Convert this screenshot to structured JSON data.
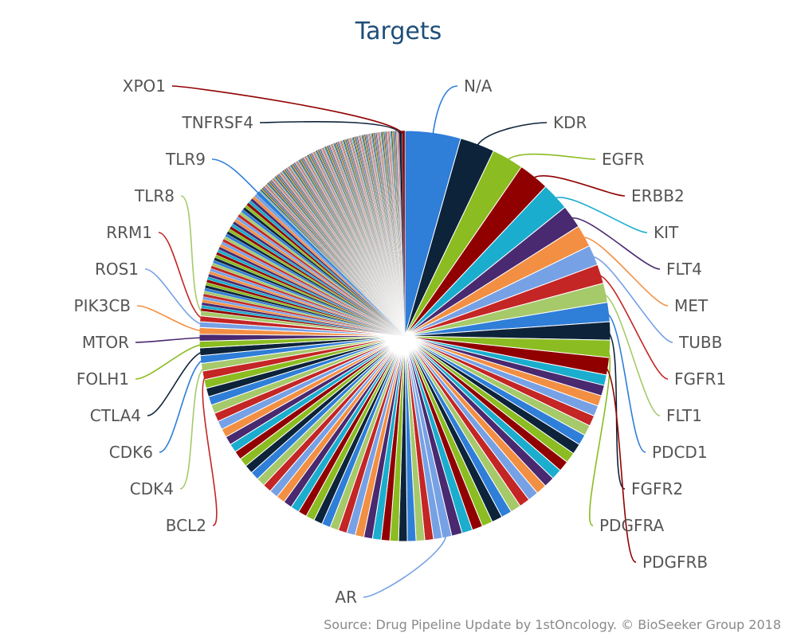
{
  "chart_data": {
    "type": "pie",
    "title": "Targets",
    "credits": "Source: Drug Pipeline Update by 1stOncology. © BioSeeker Group 2018",
    "labeled_slices": [
      {
        "name": "N/A",
        "value": 5.8,
        "color": "#2f7ed8"
      },
      {
        "name": "KDR",
        "value": 3.6,
        "color": "#0d233a"
      },
      {
        "name": "EGFR",
        "value": 3.3,
        "color": "#8bbc21"
      },
      {
        "name": "ERBB2",
        "value": 3.2,
        "color": "#910000"
      },
      {
        "name": "KIT",
        "value": 2.9,
        "color": "#1aadce"
      },
      {
        "name": "FLT4",
        "value": 2.4,
        "color": "#492970"
      },
      {
        "name": "MET",
        "value": 2.3,
        "color": "#f28f43"
      },
      {
        "name": "TUBB",
        "value": 2.1,
        "color": "#77a1e5"
      },
      {
        "name": "FGFR1",
        "value": 2.0,
        "color": "#c42525"
      },
      {
        "name": "FLT1",
        "value": 2.0,
        "color": "#a6c96a"
      },
      {
        "name": "PDCD1",
        "value": 2.0,
        "color": "#2f7ed8"
      },
      {
        "name": "FGFR2",
        "value": 1.9,
        "color": "#0d233a"
      },
      {
        "name": "PDGFRA",
        "value": 1.8,
        "color": "#8bbc21"
      },
      {
        "name": "PDGFRB",
        "value": 1.8,
        "color": "#910000"
      },
      {
        "name": "AR",
        "value": 1.0,
        "color": "#77a1e5"
      },
      {
        "name": "BCL2",
        "value": 0.9,
        "color": "#c42525"
      },
      {
        "name": "CDK4",
        "value": 0.8,
        "color": "#a6c96a"
      },
      {
        "name": "CDK6",
        "value": 0.8,
        "color": "#2f7ed8"
      },
      {
        "name": "CTLA4",
        "value": 0.8,
        "color": "#0d233a"
      },
      {
        "name": "FOLH1",
        "value": 0.7,
        "color": "#8bbc21"
      },
      {
        "name": "MTOR",
        "value": 0.7,
        "color": "#492970"
      },
      {
        "name": "PIK3CB",
        "value": 0.7,
        "color": "#f28f43"
      },
      {
        "name": "ROS1",
        "value": 0.6,
        "color": "#77a1e5"
      },
      {
        "name": "RRM1",
        "value": 0.6,
        "color": "#c42525"
      },
      {
        "name": "TLR8",
        "value": 0.5,
        "color": "#a6c96a"
      },
      {
        "name": "TLR9",
        "value": 0.4,
        "color": "#2f7ed8"
      },
      {
        "name": "TNFRSF4",
        "value": 0.3,
        "color": "#0d233a"
      },
      {
        "name": "XPO1",
        "value": 0.3,
        "color": "#910000"
      }
    ],
    "unlabeled_slices": {
      "segment_1_count": 22,
      "segment_1_value_each": 1.1,
      "segment_2_count": 36,
      "segment_2_value_each": 0.9,
      "segment_3_count": 45,
      "segment_3_value_each": 0.3,
      "segment_4_count": 160,
      "segment_4_value_each": 0.1
    },
    "palette": [
      "#2f7ed8",
      "#0d233a",
      "#8bbc21",
      "#910000",
      "#1aadce",
      "#492970",
      "#f28f43",
      "#77a1e5",
      "#c42525",
      "#a6c96a"
    ]
  }
}
